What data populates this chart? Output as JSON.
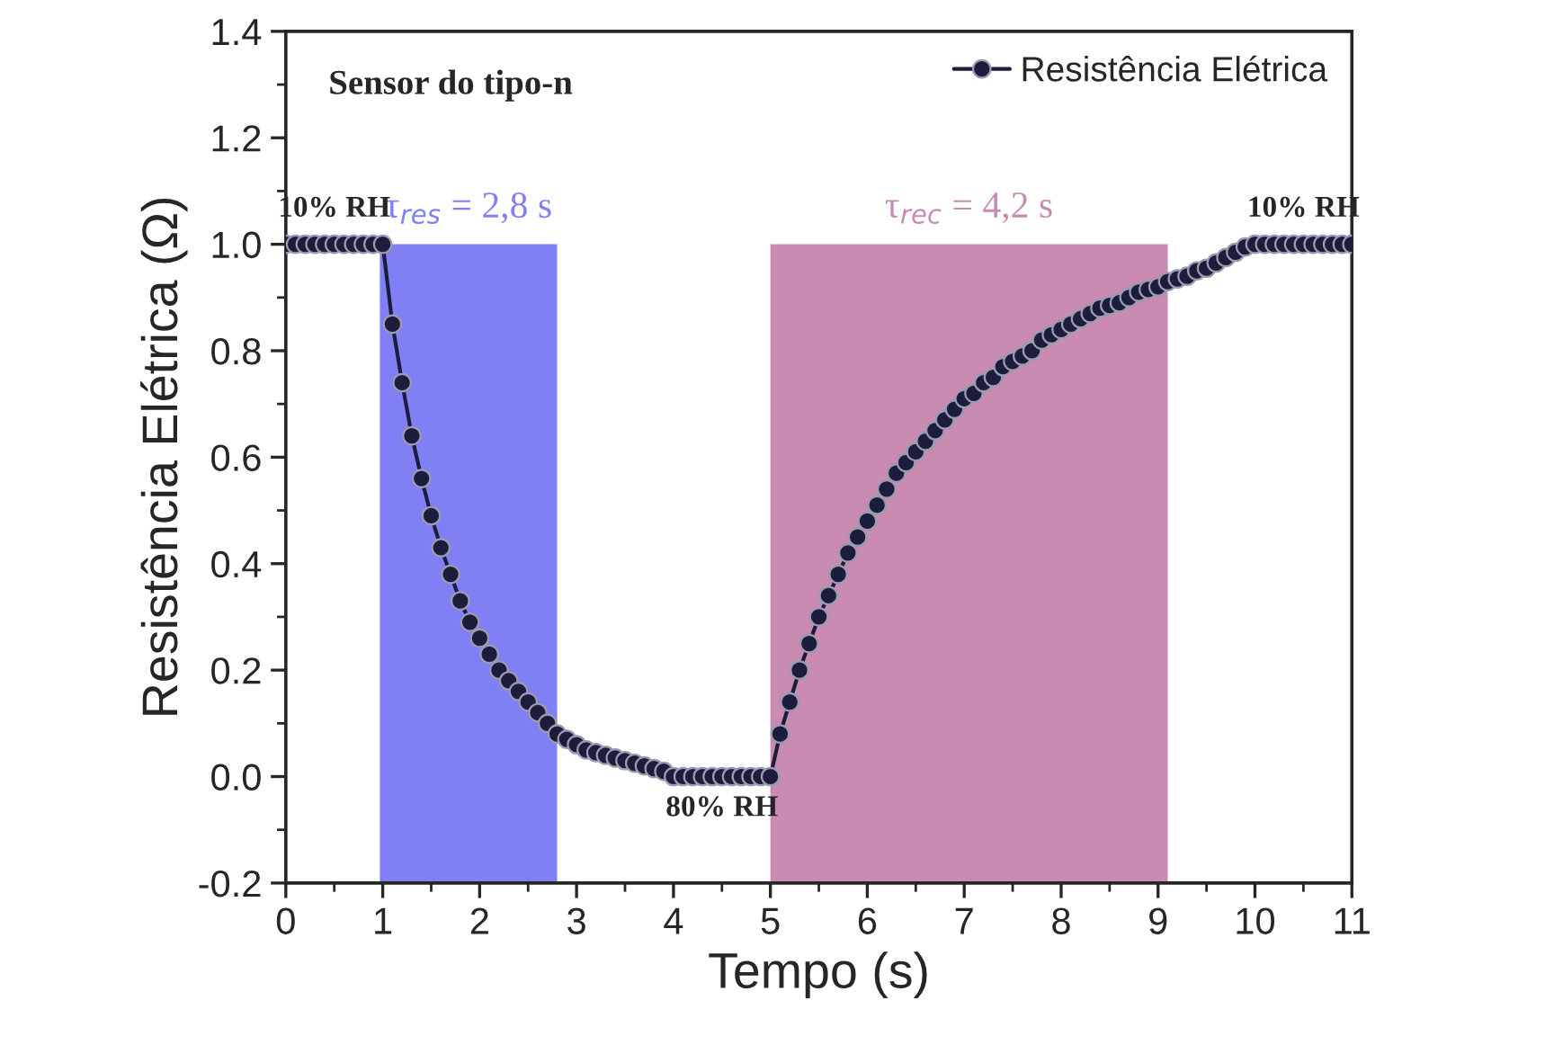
{
  "chart_data": {
    "type": "line",
    "xlabel": "Tempo (s)",
    "ylabel": "Resistência Elétrica (Ω)",
    "x": [
      0.0,
      0.1,
      0.2,
      0.3,
      0.4,
      0.5,
      0.6,
      0.7,
      0.8,
      0.9,
      1.0,
      1.1,
      1.2,
      1.3,
      1.4,
      1.5,
      1.6,
      1.7,
      1.8,
      1.9,
      2.0,
      2.1,
      2.2,
      2.3,
      2.4,
      2.5,
      2.6,
      2.7,
      2.8,
      2.9,
      3.0,
      3.1,
      3.2,
      3.3,
      3.4,
      3.5,
      3.6,
      3.7,
      3.8,
      3.9,
      4.0,
      4.1,
      4.2,
      4.3,
      4.4,
      4.5,
      4.6,
      4.7,
      4.8,
      4.9,
      5.0,
      5.1,
      5.2,
      5.3,
      5.4,
      5.5,
      5.6,
      5.7,
      5.8,
      5.9,
      6.0,
      6.1,
      6.2,
      6.3,
      6.4,
      6.5,
      6.6,
      6.7,
      6.8,
      6.9,
      7.0,
      7.1,
      7.2,
      7.3,
      7.4,
      7.5,
      7.6,
      7.7,
      7.8,
      7.9,
      8.0,
      8.1,
      8.2,
      8.3,
      8.4,
      8.5,
      8.6,
      8.7,
      8.8,
      8.9,
      9.0,
      9.1,
      9.2,
      9.3,
      9.4,
      9.5,
      9.6,
      9.7,
      9.8,
      9.9,
      10.0,
      10.1,
      10.2,
      10.3,
      10.4,
      10.5,
      10.6,
      10.7,
      10.8,
      10.9,
      11.0
    ],
    "series": [
      {
        "name": "Resistência Elétrica",
        "color": "#1c1c3c",
        "values": [
          1.0,
          1.0,
          1.0,
          1.0,
          1.0,
          1.0,
          1.0,
          1.0,
          1.0,
          1.0,
          1.0,
          0.85,
          0.74,
          0.64,
          0.56,
          0.49,
          0.43,
          0.38,
          0.33,
          0.29,
          0.26,
          0.23,
          0.2,
          0.18,
          0.16,
          0.14,
          0.12,
          0.1,
          0.08,
          0.07,
          0.06,
          0.05,
          0.045,
          0.04,
          0.035,
          0.03,
          0.025,
          0.02,
          0.015,
          0.01,
          0.0,
          0.0,
          0.0,
          0.0,
          0.0,
          0.0,
          0.0,
          0.0,
          0.0,
          0.0,
          0.0,
          0.08,
          0.14,
          0.2,
          0.25,
          0.3,
          0.34,
          0.38,
          0.42,
          0.45,
          0.48,
          0.51,
          0.54,
          0.57,
          0.59,
          0.61,
          0.63,
          0.65,
          0.67,
          0.69,
          0.71,
          0.72,
          0.74,
          0.75,
          0.77,
          0.78,
          0.79,
          0.8,
          0.82,
          0.83,
          0.84,
          0.85,
          0.86,
          0.87,
          0.88,
          0.885,
          0.89,
          0.9,
          0.91,
          0.915,
          0.92,
          0.93,
          0.935,
          0.94,
          0.95,
          0.955,
          0.965,
          0.975,
          0.985,
          0.995,
          1.0,
          1.0,
          1.0,
          1.0,
          1.0,
          1.0,
          1.0,
          1.0,
          1.0,
          1.0,
          1.0
        ]
      }
    ],
    "xlim": [
      0,
      11
    ],
    "xticks": [
      0,
      1,
      2,
      3,
      4,
      5,
      6,
      7,
      8,
      9,
      10,
      11
    ],
    "ylim": [
      -0.2,
      1.4
    ],
    "yticks": [
      {
        "value": -0.2,
        "label": "-0.2"
      },
      {
        "value": 0,
        "label": "0.0"
      },
      {
        "value": 0.2,
        "label": "0.2"
      },
      {
        "value": 0.4,
        "label": "0.4"
      },
      {
        "value": 0.6,
        "label": "0.6"
      },
      {
        "value": 0.8,
        "label": "0.8"
      },
      {
        "value": 1.0,
        "label": "1.0"
      },
      {
        "value": 1.2,
        "label": "1.2"
      },
      {
        "value": 1.4,
        "label": "1.4"
      }
    ],
    "bands": [
      {
        "axis": "x",
        "from": 0.97,
        "to": 2.8,
        "label": "τ$_{res}$ = 2,8 s",
        "color": "#8080f4"
      },
      {
        "axis": "x",
        "from": 5.0,
        "to": 9.1,
        "label": "τ$_{rec}$ = 4,2 s",
        "color": "#c98bb2"
      }
    ],
    "annotations": [
      "Sensor do tipo-n",
      {
        "text": "10% RH",
        "x": 0.5,
        "y": 1.0
      },
      {
        "text": "80% RH",
        "x": 4.5,
        "y": 0.0
      },
      {
        "text": "10% RH",
        "x": 10.5,
        "y": 1.0
      }
    ],
    "marker": "circle",
    "line_style": "solid",
    "legend": "top right",
    "grid": false
  }
}
